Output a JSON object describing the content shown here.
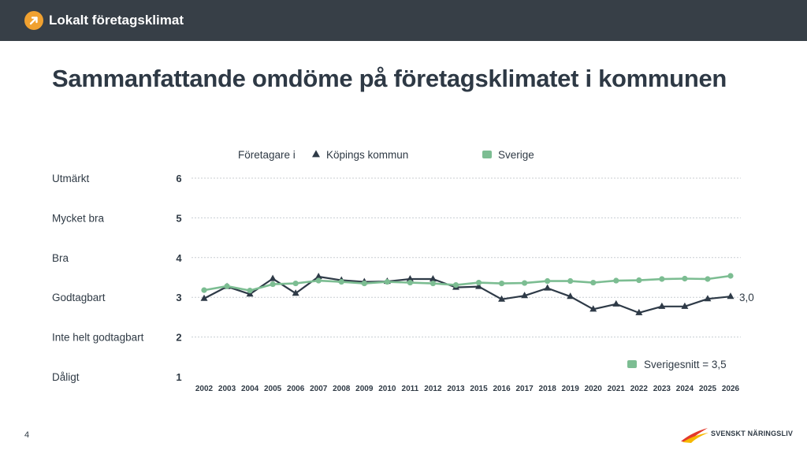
{
  "app": {
    "title": "Lokalt företagsklimat",
    "logo_icon": "arrow-up-right-icon",
    "accent_color": "#f0a130",
    "header_bg": "#373f47"
  },
  "slide": {
    "title": "Sammanfattande omdöme på företagsklimatet i kommunen",
    "page_number": "4"
  },
  "brand": {
    "name": "SVENSKT NÄRINGSLIV",
    "logo_icon": "swoosh-logo-icon"
  },
  "chart_data": {
    "type": "line",
    "legend": {
      "prefix": "Företagare i",
      "placement": "top"
    },
    "series": [
      {
        "name": "Köpings kommun",
        "marker": "triangle",
        "color": "#2e3a47",
        "values": [
          2.97,
          3.27,
          3.08,
          3.47,
          3.1,
          3.52,
          3.43,
          3.39,
          3.4,
          3.46,
          3.46,
          3.25,
          3.27,
          2.95,
          3.04,
          3.23,
          3.02,
          2.7,
          2.83,
          2.61,
          2.77,
          2.77,
          2.96,
          3.02
        ]
      },
      {
        "name": "Sverige",
        "marker": "circle",
        "color": "#7cbd92",
        "values": [
          3.18,
          3.28,
          3.17,
          3.33,
          3.35,
          3.42,
          3.39,
          3.35,
          3.39,
          3.37,
          3.35,
          3.31,
          3.37,
          3.35,
          3.36,
          3.41,
          3.41,
          3.37,
          3.42,
          3.43,
          3.46,
          3.47,
          3.46,
          3.54
        ]
      }
    ],
    "x": [
      "2002",
      "2003",
      "2004",
      "2005",
      "2006",
      "2007",
      "2008",
      "2009",
      "2010",
      "2011",
      "2012",
      "2013",
      "2015",
      "2016",
      "2017",
      "2018",
      "2019",
      "2020",
      "2021",
      "2022",
      "2023",
      "2024",
      "2025",
      "2026"
    ],
    "ylim": [
      1,
      6
    ],
    "yticks": [
      "1",
      "2",
      "3",
      "4",
      "5",
      "6"
    ],
    "y_category_labels": [
      "Dåligt",
      "Inte helt godtagbart",
      "Godtagbart",
      "Bra",
      "Mycket bra",
      "Utmärkt"
    ],
    "grid": true,
    "end_label": "3,0",
    "end_label_value": 3.0,
    "reference_label": "Sverigesnitt = 3,5"
  }
}
